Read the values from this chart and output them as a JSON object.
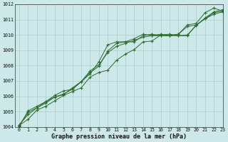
{
  "title": "",
  "xlabel": "Graphe pression niveau de la mer (hPa)",
  "ylabel": "",
  "bg_color": "#cce8e8",
  "grid_color": "#aacccc",
  "line_color": "#2d6a2d",
  "xlim": [
    -0.5,
    23
  ],
  "ylim": [
    1004,
    1012
  ],
  "yticks": [
    1004,
    1005,
    1006,
    1007,
    1008,
    1009,
    1010,
    1011,
    1012
  ],
  "xticks": [
    0,
    1,
    2,
    3,
    4,
    5,
    6,
    7,
    8,
    9,
    10,
    11,
    12,
    13,
    14,
    15,
    16,
    17,
    18,
    19,
    20,
    21,
    22,
    23
  ],
  "series": [
    [
      1004.1,
      1004.5,
      1005.1,
      1005.35,
      1005.7,
      1006.05,
      1006.3,
      1006.55,
      1007.25,
      1007.55,
      1007.7,
      1008.35,
      1008.75,
      1009.05,
      1009.55,
      1009.6,
      1010.0,
      1010.05,
      1009.95,
      1010.0,
      1010.6,
      1011.1,
      1011.5,
      1011.65
    ],
    [
      1004.15,
      1004.8,
      1005.25,
      1005.65,
      1005.95,
      1006.1,
      1006.55,
      1006.95,
      1007.55,
      1007.95,
      1008.95,
      1009.45,
      1009.55,
      1009.55,
      1009.95,
      1010.05,
      1009.95,
      1009.95,
      1009.95,
      1009.95,
      1010.65,
      1011.05,
      1011.35,
      1011.5
    ],
    [
      1004.05,
      1005.05,
      1005.35,
      1005.65,
      1006.05,
      1006.35,
      1006.45,
      1006.95,
      1007.45,
      1008.25,
      1009.35,
      1009.55,
      1009.55,
      1009.75,
      1010.05,
      1009.95,
      1010.05,
      1009.95,
      1010.05,
      1010.55,
      1010.65,
      1011.05,
      1011.45,
      1011.55
    ],
    [
      1004.1,
      1004.95,
      1005.25,
      1005.55,
      1005.95,
      1006.15,
      1006.45,
      1006.95,
      1007.65,
      1008.05,
      1008.85,
      1009.25,
      1009.45,
      1009.65,
      1009.85,
      1009.95,
      1009.95,
      1009.95,
      1010.05,
      1010.65,
      1010.75,
      1011.45,
      1011.75,
      1011.55
    ]
  ]
}
